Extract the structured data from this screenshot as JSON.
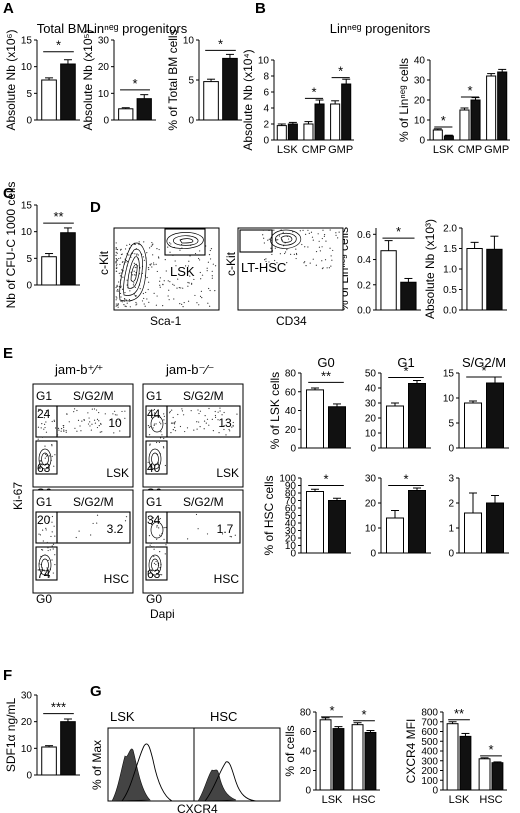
{
  "panel_letters": [
    "A",
    "B",
    "C",
    "D",
    "E",
    "F",
    "G"
  ],
  "chart_data": [
    {
      "id": "A1",
      "type": "bar",
      "panel": "A",
      "title": "Total BM",
      "ylabel": "Absolute Nb (x10⁶)",
      "ylim": [
        0,
        15
      ],
      "yticks": [
        "0",
        "5",
        "10",
        "15"
      ],
      "categories": [
        "jam-b+/+",
        "jam-b-/-"
      ],
      "values": [
        7.5,
        10.5
      ],
      "errors": [
        0.4,
        0.8
      ],
      "colors": [
        "#ffffff",
        "#111111"
      ],
      "sig": [
        {
          "from": 0,
          "to": 1,
          "label": "*",
          "y": 12.8
        }
      ]
    },
    {
      "id": "A2",
      "type": "bar",
      "panel": "A",
      "title": "Linⁿᵉᵍ progenitors",
      "ylabel": "Absolute Nb (x10⁵)",
      "ylim": [
        0,
        30
      ],
      "yticks": [
        "0",
        "10",
        "20",
        "30"
      ],
      "categories": [
        "jam-b+/+",
        "jam-b-/-"
      ],
      "values": [
        4.2,
        8.0
      ],
      "errors": [
        0.4,
        1.5
      ],
      "colors": [
        "#ffffff",
        "#111111"
      ],
      "sig": [
        {
          "from": 0,
          "to": 1,
          "label": "*",
          "y": 11.3
        }
      ]
    },
    {
      "id": "A3",
      "type": "bar",
      "panel": "A",
      "ylabel": "% of Total BM cells",
      "ylim": [
        0,
        10
      ],
      "yticks": [
        "0",
        "5",
        "10"
      ],
      "categories": [
        "jam-b+/+",
        "jam-b-/-"
      ],
      "values": [
        4.8,
        7.7
      ],
      "errors": [
        0.3,
        0.5
      ],
      "colors": [
        "#ffffff",
        "#111111"
      ],
      "sig": [
        {
          "from": 0,
          "to": 1,
          "label": "*",
          "y": 8.7
        }
      ]
    },
    {
      "id": "B1",
      "type": "bar",
      "panel": "B",
      "title": "Linⁿᵉᵍ progenitors",
      "ylabel": "Absolute Nb (x10⁴)",
      "ylim": [
        0,
        10
      ],
      "yticks": [
        "0",
        "2",
        "4",
        "6",
        "8",
        "10"
      ],
      "categories": [
        "LSK",
        "CMP",
        "GMP"
      ],
      "series": [
        {
          "values": [
            1.8,
            2.0,
            4.5
          ],
          "errors": [
            0.2,
            0.3,
            0.4
          ]
        },
        {
          "values": [
            2.0,
            4.5,
            7.0
          ],
          "errors": [
            0.2,
            0.5,
            0.6
          ]
        }
      ],
      "colors": [
        "#ffffff",
        "#111111"
      ],
      "sig": [
        {
          "group": 1,
          "label": "*",
          "y": 5.2
        },
        {
          "group": 2,
          "label": "*",
          "y": 7.8
        }
      ]
    },
    {
      "id": "B2",
      "type": "bar",
      "panel": "B",
      "ylabel": "% of Linⁿᵉᵍ cells",
      "ylim": [
        0,
        40
      ],
      "yticks": [
        "0",
        "10",
        "20",
        "30",
        "40"
      ],
      "categories": [
        "LSK",
        "CMP",
        "GMP"
      ],
      "series": [
        {
          "values": [
            5.0,
            15.0,
            32.0
          ],
          "errors": [
            0.6,
            1.0,
            1.2
          ]
        },
        {
          "values": [
            2.0,
            20.0,
            34.0
          ],
          "errors": [
            0.4,
            1.2,
            1.3
          ]
        }
      ],
      "colors": [
        "#ffffff",
        "#111111"
      ],
      "sig": [
        {
          "group": 0,
          "label": "*",
          "y": 6.5
        },
        {
          "group": 1,
          "label": "*",
          "y": 21.5
        }
      ]
    },
    {
      "id": "C",
      "type": "bar",
      "panel": "C",
      "ylabel": "Nb of CFU-C 1000 cells",
      "ylim": [
        0,
        15
      ],
      "yticks": [
        "0",
        "5",
        "10",
        "15"
      ],
      "categories": [
        "jam-b+/+",
        "jam-b-/-"
      ],
      "values": [
        5.3,
        9.8
      ],
      "errors": [
        0.6,
        0.9
      ],
      "colors": [
        "#ffffff",
        "#111111"
      ],
      "sig": [
        {
          "from": 0,
          "to": 1,
          "label": "**",
          "y": 11.6
        }
      ]
    },
    {
      "id": "D1",
      "type": "bar",
      "panel": "D",
      "ylabel": "% of Linⁿᵉᵍ cells",
      "ylim": [
        0,
        0.65
      ],
      "yticks": [
        "0.0",
        "0.2",
        "0.4",
        "0.6"
      ],
      "categories": [
        "jam-b+/+",
        "jam-b-/-"
      ],
      "values": [
        0.47,
        0.22
      ],
      "errors": [
        0.08,
        0.03
      ],
      "colors": [
        "#ffffff",
        "#111111"
      ],
      "sig": [
        {
          "from": 0,
          "to": 1,
          "label": "*",
          "y": 0.57
        }
      ]
    },
    {
      "id": "D2",
      "type": "bar",
      "panel": "D",
      "ylabel": "Absolute Nb (x10³)",
      "ylim": [
        0,
        2
      ],
      "yticks": [
        "0.0",
        "0.5",
        "1.0",
        "1.5",
        "2.0"
      ],
      "categories": [
        "jam-b+/+",
        "jam-b-/-"
      ],
      "values": [
        1.5,
        1.48
      ],
      "errors": [
        0.15,
        0.32
      ],
      "colors": [
        "#ffffff",
        "#111111"
      ],
      "sig": []
    },
    {
      "id": "E1",
      "type": "bar",
      "panel": "E",
      "title": "G0",
      "ylabel": "% of LSK cells",
      "ylim": [
        0,
        80
      ],
      "yticks": [
        "0",
        "20",
        "40",
        "60",
        "80"
      ],
      "categories": [
        "jam-b+/+",
        "jam-b-/-"
      ],
      "values": [
        62,
        44
      ],
      "errors": [
        2,
        3
      ],
      "colors": [
        "#ffffff",
        "#111111"
      ],
      "sig": [
        {
          "from": 0,
          "to": 1,
          "label": "**",
          "y": 70
        }
      ]
    },
    {
      "id": "E2",
      "type": "bar",
      "panel": "E",
      "title": "G1",
      "ylim": [
        0,
        50
      ],
      "yticks": [
        "0",
        "10",
        "20",
        "30",
        "40",
        "50"
      ],
      "categories": [
        "jam-b+/+",
        "jam-b-/-"
      ],
      "values": [
        28,
        43
      ],
      "errors": [
        2,
        2
      ],
      "colors": [
        "#ffffff",
        "#111111"
      ],
      "sig": [
        {
          "from": 0,
          "to": 1,
          "label": "*",
          "y": 47
        }
      ]
    },
    {
      "id": "E3",
      "type": "bar",
      "panel": "E",
      "title": "S/G2/M",
      "ylim": [
        0,
        15
      ],
      "yticks": [
        "0",
        "5",
        "10",
        "15"
      ],
      "categories": [
        "jam-b+/+",
        "jam-b-/-"
      ],
      "values": [
        9,
        13
      ],
      "errors": [
        0.4,
        1.2
      ],
      "colors": [
        "#ffffff",
        "#111111"
      ],
      "sig": [
        {
          "from": 0,
          "to": 1,
          "label": "*",
          "y": 14.2
        }
      ]
    },
    {
      "id": "E4",
      "type": "bar",
      "panel": "E",
      "ylabel": "% of HSC cells",
      "ylim": [
        0,
        100
      ],
      "yticks": [
        "0",
        "10",
        "20",
        "30",
        "40",
        "50",
        "60",
        "70",
        "80",
        "90",
        "100"
      ],
      "categories": [
        "jam-b+/+",
        "jam-b-/-"
      ],
      "values": [
        82,
        70
      ],
      "errors": [
        3,
        3
      ],
      "colors": [
        "#ffffff",
        "#111111"
      ],
      "sig": [
        {
          "from": 0,
          "to": 1,
          "label": "*",
          "y": 90
        }
      ]
    },
    {
      "id": "E5",
      "type": "bar",
      "panel": "E",
      "ylim": [
        0,
        30
      ],
      "yticks": [
        "0",
        "10",
        "20",
        "30"
      ],
      "categories": [
        "jam-b+/+",
        "jam-b-/-"
      ],
      "values": [
        14,
        25
      ],
      "errors": [
        3,
        1
      ],
      "colors": [
        "#ffffff",
        "#111111"
      ],
      "sig": [
        {
          "from": 0,
          "to": 1,
          "label": "*",
          "y": 27
        }
      ]
    },
    {
      "id": "E6",
      "type": "bar",
      "panel": "E",
      "ylim": [
        0,
        3
      ],
      "yticks": [
        "0",
        "1",
        "2",
        "3"
      ],
      "categories": [
        "jam-b+/+",
        "jam-b-/-"
      ],
      "values": [
        1.6,
        2.0
      ],
      "errors": [
        0.8,
        0.3
      ],
      "colors": [
        "#ffffff",
        "#111111"
      ],
      "sig": []
    },
    {
      "id": "F",
      "type": "bar",
      "panel": "F",
      "ylabel": "SDF1α ng/mL",
      "ylim": [
        0,
        30
      ],
      "yticks": [
        "0",
        "10",
        "20",
        "30"
      ],
      "categories": [
        "jam-b+/+",
        "jam-b-/-"
      ],
      "values": [
        10.5,
        20.0
      ],
      "errors": [
        0.5,
        1.0
      ],
      "colors": [
        "#ffffff",
        "#111111"
      ],
      "sig": [
        {
          "from": 0,
          "to": 1,
          "label": "***",
          "y": 23
        }
      ]
    },
    {
      "id": "G1",
      "type": "bar",
      "panel": "G",
      "ylabel": "% of cells",
      "ylim": [
        0,
        80
      ],
      "yticks": [
        "0",
        "20",
        "40",
        "60",
        "80"
      ],
      "categories": [
        "LSK",
        "HSC"
      ],
      "series": [
        {
          "values": [
            72,
            67
          ],
          "errors": [
            2,
            2
          ]
        },
        {
          "values": [
            63,
            59
          ],
          "errors": [
            2,
            2
          ]
        }
      ],
      "colors": [
        "#ffffff",
        "#111111"
      ],
      "sig": [
        {
          "group": 0,
          "label": "*",
          "y": 75
        },
        {
          "group": 1,
          "label": "*",
          "y": 71
        }
      ]
    },
    {
      "id": "G2",
      "type": "bar",
      "panel": "G",
      "ylabel": "CXCR4 MFI",
      "ylim": [
        0,
        800
      ],
      "yticks": [
        "0",
        "100",
        "200",
        "300",
        "400",
        "500",
        "600",
        "700",
        "800"
      ],
      "categories": [
        "LSK",
        "HSC"
      ],
      "series": [
        {
          "values": [
            680,
            320
          ],
          "errors": [
            20,
            10
          ]
        },
        {
          "values": [
            550,
            280
          ],
          "errors": [
            30,
            8
          ]
        }
      ],
      "colors": [
        "#ffffff",
        "#111111"
      ],
      "sig": [
        {
          "group": 0,
          "label": "**",
          "y": 720
        },
        {
          "group": 1,
          "label": "*",
          "y": 350
        }
      ]
    }
  ],
  "flow_plots": {
    "d_lin": {
      "xlabel": "Sca-1",
      "ylabel": "c-Kit",
      "gate": "LSK"
    },
    "d_lsk": {
      "xlabel": "CD34",
      "ylabel": "c-Kit",
      "gate": "LT-HSC"
    },
    "e_cols": [
      "jam-b⁺⁄⁺",
      "jam-b⁻⁄⁻"
    ],
    "e_ylabel": "Ki-67",
    "e_xlabel": "Dapi",
    "e_plots": [
      {
        "g1": "G1",
        "sg2m": "S/G2/M",
        "g0": "G0",
        "v_g1": "24",
        "v_g0": "63",
        "v_s": "10",
        "pop": "LSK"
      },
      {
        "g1": "G1",
        "sg2m": "S/G2/M",
        "g0": "G0",
        "v_g1": "44",
        "v_g0": "40",
        "v_s": "13",
        "pop": "LSK"
      },
      {
        "g1": "G1",
        "sg2m": "S/G2/M",
        "g0": "G0",
        "v_g1": "20",
        "v_g0": "74",
        "v_s": "3.2",
        "pop": "HSC"
      },
      {
        "g1": "G1",
        "sg2m": "S/G2/M",
        "g0": "G0",
        "v_g1": "34",
        "v_g0": "63",
        "v_s": "1.7",
        "pop": "HSC"
      }
    ],
    "g_hist": {
      "ylabel": "% of Max",
      "xlabel": "CXCR4",
      "titles": [
        "LSK",
        "HSC"
      ]
    }
  }
}
